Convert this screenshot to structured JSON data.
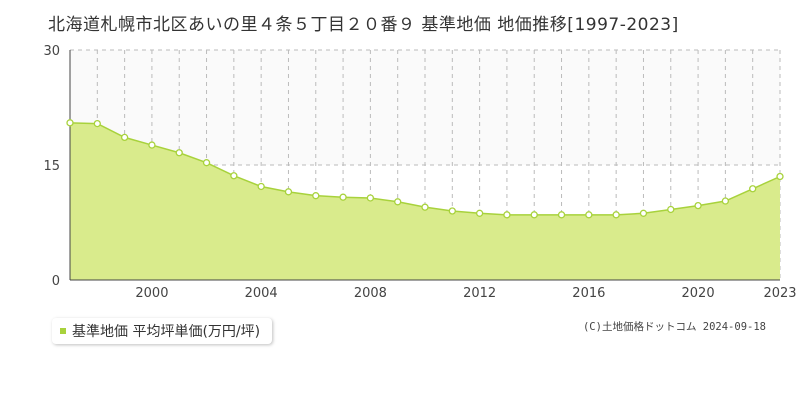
{
  "title": "北海道札幌市北区あいの里４条５丁目２０番９ 基準地価 地価推移[1997-2023]",
  "legend_label": "基準地価 平均坪単価(万円/坪)",
  "credit": "(C)土地価格ドットコム 2024-09-18",
  "colors": {
    "area_fill": "#d9eb8c",
    "line": "#a8d23c",
    "marker_fill": "#ffffff",
    "grid": "#bbbbbb",
    "axis": "#444444",
    "upper_band": "#fafafa"
  },
  "chart_data": {
    "type": "area",
    "title": "北海道札幌市北区あいの里４条５丁目２０番９ 基準地価 地価推移[1997-2023]",
    "xlabel": "",
    "ylabel": "",
    "x": [
      1997,
      1998,
      1999,
      2000,
      2001,
      2002,
      2003,
      2004,
      2005,
      2006,
      2007,
      2008,
      2009,
      2010,
      2011,
      2012,
      2013,
      2014,
      2015,
      2016,
      2017,
      2018,
      2019,
      2020,
      2021,
      2022,
      2023
    ],
    "series": [
      {
        "name": "基準地価 平均坪単価(万円/坪)",
        "values": [
          20.5,
          20.4,
          18.6,
          17.6,
          16.6,
          15.3,
          13.6,
          12.2,
          11.5,
          11.0,
          10.8,
          10.7,
          10.2,
          9.5,
          9.0,
          8.7,
          8.5,
          8.5,
          8.5,
          8.5,
          8.5,
          8.7,
          9.2,
          9.7,
          10.3,
          11.9,
          13.5
        ]
      }
    ],
    "xlim": [
      1997,
      2023
    ],
    "ylim": [
      0,
      30
    ],
    "y_ticks": [
      "0",
      "15",
      "30"
    ],
    "x_ticks": [
      "2000",
      "2004",
      "2008",
      "2012",
      "2016",
      "2020",
      "2023"
    ],
    "x_tick_values": [
      2000,
      2004,
      2008,
      2012,
      2016,
      2020,
      2023
    ],
    "grid": true,
    "legend_position": "bottom-left"
  }
}
